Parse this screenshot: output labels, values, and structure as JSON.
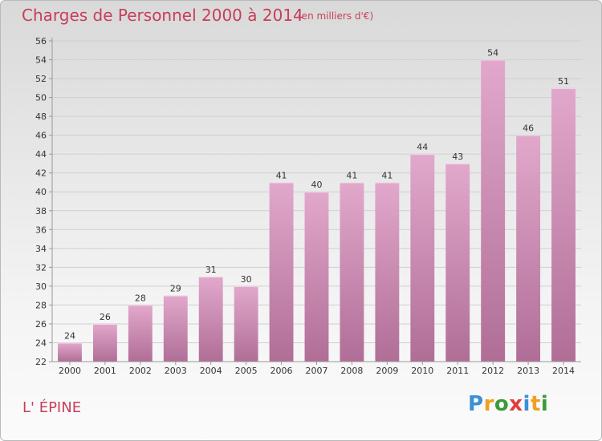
{
  "title": "Charges de Personnel 2000 à 2014",
  "subtitle": "(en milliers d'€)",
  "commune": "L' ÉPINE",
  "logo": {
    "letters": [
      {
        "char": "P",
        "color": "#3a8fd6"
      },
      {
        "char": "r",
        "color": "#f0a020"
      },
      {
        "char": "o",
        "color": "#3a9b3a"
      },
      {
        "char": "x",
        "color": "#e23b3b"
      },
      {
        "char": "i",
        "color": "#3a8fd6"
      },
      {
        "char": "t",
        "color": "#f0a020"
      },
      {
        "char": "i",
        "color": "#3a9b3a"
      }
    ]
  },
  "colors": {
    "bar_top": "#e2a8cc",
    "bar_bottom": "#b06e96",
    "accent": "#c83e58"
  },
  "chart_data": {
    "type": "bar",
    "categories": [
      "2000",
      "2001",
      "2002",
      "2003",
      "2004",
      "2005",
      "2006",
      "2007",
      "2008",
      "2009",
      "2010",
      "2011",
      "2012",
      "2013",
      "2014"
    ],
    "values": [
      24,
      26,
      28,
      29,
      31,
      30,
      41,
      40,
      41,
      41,
      44,
      43,
      54,
      46,
      51
    ],
    "ylim": [
      22,
      56
    ],
    "yticks": [
      22,
      24,
      26,
      28,
      30,
      32,
      34,
      36,
      38,
      40,
      42,
      44,
      46,
      48,
      50,
      52,
      54,
      56
    ],
    "grid": true,
    "title": "Charges de Personnel 2000 à 2014",
    "xlabel": "",
    "ylabel": ""
  }
}
